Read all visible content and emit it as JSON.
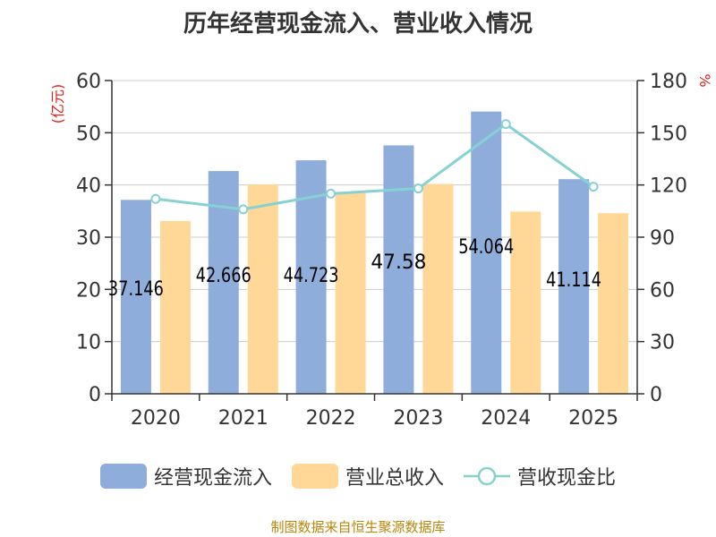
{
  "chart_data": {
    "type": "bar",
    "title": "历年经营现金流入、营业收入情况",
    "categories": [
      "2020",
      "2021",
      "2022",
      "2023",
      "2024",
      "2025"
    ],
    "series": [
      {
        "name": "经营现金流入",
        "type": "bar",
        "axis": "left",
        "color": "#8eaddb",
        "values": [
          37.146,
          42.666,
          44.723,
          47.58,
          54.064,
          41.114
        ],
        "labels": [
          "37.146",
          "42.666",
          "44.723",
          "47.58",
          "54.064",
          "41.114"
        ]
      },
      {
        "name": "营业总收入",
        "type": "bar",
        "axis": "left",
        "color": "#ffd898",
        "values": [
          33.1,
          40.1,
          38.5,
          40.2,
          34.9,
          34.6
        ]
      },
      {
        "name": "营收现金比",
        "type": "line",
        "axis": "right",
        "color": "#86d1d2",
        "values": [
          112,
          106,
          115,
          118,
          155,
          119
        ]
      }
    ],
    "y_left": {
      "label": "(亿元)",
      "range": [
        0,
        60
      ],
      "ticks": [
        0,
        10,
        20,
        30,
        40,
        50,
        60
      ]
    },
    "y_right": {
      "label": "%",
      "range": [
        0,
        180
      ],
      "ticks": [
        0,
        30,
        60,
        90,
        120,
        150,
        180
      ]
    },
    "grid": true,
    "legend": "bottom"
  },
  "footer": "制图数据来自恒生聚源数据库",
  "colors": {
    "axis_label": "#e0201b",
    "text": "#333333",
    "grid": "#cccccc"
  }
}
